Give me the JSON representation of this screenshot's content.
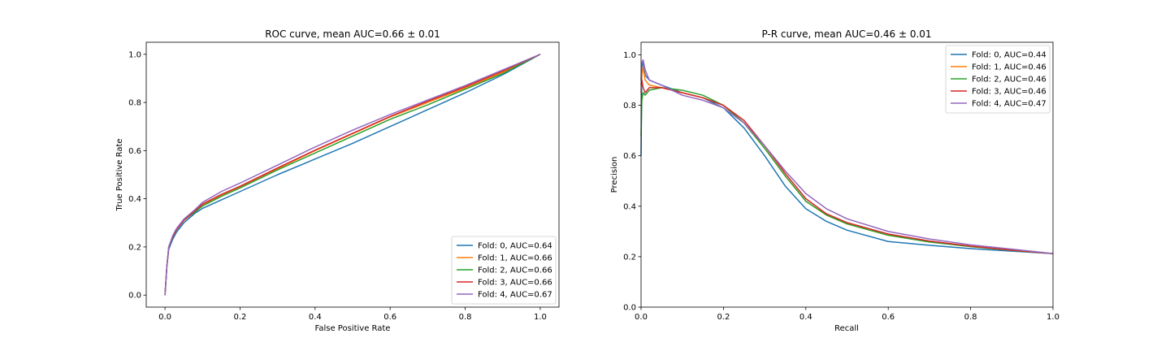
{
  "chart_data": [
    {
      "type": "line",
      "title": "ROC curve, mean AUC=0.66 ± 0.01",
      "xlabel": "False Positive Rate",
      "ylabel": "True Positive Rate",
      "xlim": [
        -0.05,
        1.05
      ],
      "ylim": [
        -0.05,
        1.05
      ],
      "xticks": [
        "0.0",
        "0.2",
        "0.4",
        "0.6",
        "0.8",
        "1.0"
      ],
      "yticks": [
        "0.0",
        "0.2",
        "0.4",
        "0.6",
        "0.8",
        "1.0"
      ],
      "grid": false,
      "legend_position": "lower-right",
      "series": [
        {
          "name": "Fold: 0, AUC=0.64",
          "color": "#1f77b4",
          "x": [
            0,
            0.005,
            0.01,
            0.02,
            0.03,
            0.05,
            0.08,
            0.1,
            0.15,
            0.2,
            0.3,
            0.4,
            0.5,
            0.6,
            0.7,
            0.8,
            0.9,
            1.0
          ],
          "y": [
            0,
            0.12,
            0.19,
            0.23,
            0.26,
            0.3,
            0.34,
            0.36,
            0.395,
            0.43,
            0.5,
            0.565,
            0.63,
            0.7,
            0.77,
            0.84,
            0.915,
            1.0
          ]
        },
        {
          "name": "Fold: 1, AUC=0.66",
          "color": "#ff7f0e",
          "x": [
            0,
            0.005,
            0.01,
            0.02,
            0.03,
            0.05,
            0.08,
            0.1,
            0.15,
            0.2,
            0.3,
            0.4,
            0.5,
            0.6,
            0.7,
            0.8,
            0.9,
            1.0
          ],
          "y": [
            0,
            0.12,
            0.2,
            0.24,
            0.27,
            0.31,
            0.35,
            0.375,
            0.415,
            0.45,
            0.525,
            0.6,
            0.67,
            0.74,
            0.8,
            0.86,
            0.925,
            1.0
          ]
        },
        {
          "name": "Fold: 2, AUC=0.66",
          "color": "#2ca02c",
          "x": [
            0,
            0.005,
            0.01,
            0.02,
            0.03,
            0.05,
            0.08,
            0.1,
            0.15,
            0.2,
            0.3,
            0.4,
            0.5,
            0.6,
            0.7,
            0.8,
            0.9,
            1.0
          ],
          "y": [
            0,
            0.12,
            0.2,
            0.24,
            0.27,
            0.31,
            0.345,
            0.37,
            0.41,
            0.445,
            0.52,
            0.59,
            0.66,
            0.73,
            0.79,
            0.855,
            0.92,
            1.0
          ]
        },
        {
          "name": "Fold: 3, AUC=0.66",
          "color": "#d62728",
          "x": [
            0,
            0.005,
            0.01,
            0.02,
            0.03,
            0.05,
            0.08,
            0.1,
            0.15,
            0.2,
            0.3,
            0.4,
            0.5,
            0.6,
            0.7,
            0.8,
            0.9,
            1.0
          ],
          "y": [
            0,
            0.12,
            0.2,
            0.24,
            0.27,
            0.31,
            0.35,
            0.378,
            0.418,
            0.452,
            0.528,
            0.602,
            0.672,
            0.742,
            0.805,
            0.865,
            0.93,
            1.0
          ]
        },
        {
          "name": "Fold: 4, AUC=0.67",
          "color": "#9467bd",
          "x": [
            0,
            0.005,
            0.01,
            0.02,
            0.03,
            0.05,
            0.08,
            0.1,
            0.15,
            0.2,
            0.3,
            0.4,
            0.5,
            0.6,
            0.7,
            0.8,
            0.9,
            1.0
          ],
          "y": [
            0,
            0.12,
            0.2,
            0.245,
            0.275,
            0.315,
            0.355,
            0.385,
            0.43,
            0.465,
            0.54,
            0.615,
            0.685,
            0.75,
            0.81,
            0.87,
            0.935,
            1.0
          ]
        }
      ]
    },
    {
      "type": "line",
      "title": "P-R curve, mean AUC=0.46 ± 0.01",
      "xlabel": "Recall",
      "ylabel": "Precision",
      "xlim": [
        0,
        1
      ],
      "ylim": [
        0,
        1.05
      ],
      "xticks": [
        "0.0",
        "0.2",
        "0.4",
        "0.6",
        "0.8",
        "1.0"
      ],
      "yticks": [
        "0.0",
        "0.2",
        "0.4",
        "0.6",
        "0.8",
        "1.0"
      ],
      "grid": false,
      "legend_position": "upper-right",
      "series": [
        {
          "name": "Fold: 0, AUC=0.44",
          "color": "#1f77b4",
          "x": [
            0,
            0.002,
            0.005,
            0.01,
            0.02,
            0.05,
            0.1,
            0.15,
            0.2,
            0.25,
            0.3,
            0.35,
            0.4,
            0.45,
            0.5,
            0.6,
            0.7,
            0.8,
            0.9,
            1.0
          ],
          "y": [
            0.6,
            0.95,
            0.97,
            0.92,
            0.9,
            0.88,
            0.85,
            0.83,
            0.79,
            0.71,
            0.6,
            0.48,
            0.39,
            0.34,
            0.305,
            0.26,
            0.245,
            0.232,
            0.222,
            0.212
          ]
        },
        {
          "name": "Fold: 1, AUC=0.46",
          "color": "#ff7f0e",
          "x": [
            0,
            0.002,
            0.005,
            0.01,
            0.02,
            0.05,
            0.1,
            0.15,
            0.2,
            0.25,
            0.3,
            0.35,
            0.4,
            0.45,
            0.5,
            0.6,
            0.7,
            0.8,
            0.9,
            1.0
          ],
          "y": [
            0.85,
            0.92,
            0.95,
            0.9,
            0.88,
            0.87,
            0.85,
            0.83,
            0.8,
            0.73,
            0.63,
            0.52,
            0.42,
            0.365,
            0.33,
            0.285,
            0.26,
            0.24,
            0.225,
            0.212
          ]
        },
        {
          "name": "Fold: 2, AUC=0.46",
          "color": "#2ca02c",
          "x": [
            0,
            0.002,
            0.005,
            0.01,
            0.02,
            0.05,
            0.1,
            0.15,
            0.2,
            0.25,
            0.3,
            0.35,
            0.4,
            0.45,
            0.5,
            0.6,
            0.7,
            0.8,
            0.9,
            1.0
          ],
          "y": [
            0.68,
            0.82,
            0.85,
            0.84,
            0.86,
            0.87,
            0.86,
            0.84,
            0.8,
            0.73,
            0.63,
            0.52,
            0.42,
            0.365,
            0.33,
            0.285,
            0.258,
            0.24,
            0.225,
            0.212
          ]
        },
        {
          "name": "Fold: 3, AUC=0.46",
          "color": "#d62728",
          "x": [
            0,
            0.002,
            0.005,
            0.01,
            0.02,
            0.05,
            0.1,
            0.15,
            0.2,
            0.25,
            0.3,
            0.35,
            0.4,
            0.45,
            0.5,
            0.6,
            0.7,
            0.8,
            0.9,
            1.0
          ],
          "y": [
            0.88,
            0.9,
            0.87,
            0.85,
            0.87,
            0.87,
            0.85,
            0.83,
            0.8,
            0.74,
            0.64,
            0.53,
            0.43,
            0.37,
            0.335,
            0.29,
            0.262,
            0.242,
            0.226,
            0.212
          ]
        },
        {
          "name": "Fold: 4, AUC=0.47",
          "color": "#9467bd",
          "x": [
            0,
            0.002,
            0.005,
            0.01,
            0.02,
            0.05,
            0.1,
            0.15,
            0.2,
            0.25,
            0.3,
            0.35,
            0.4,
            0.45,
            0.5,
            0.6,
            0.7,
            0.8,
            0.9,
            1.0
          ],
          "y": [
            0.9,
            0.97,
            0.98,
            0.94,
            0.9,
            0.88,
            0.84,
            0.82,
            0.79,
            0.73,
            0.64,
            0.54,
            0.45,
            0.39,
            0.35,
            0.3,
            0.27,
            0.247,
            0.23,
            0.212
          ]
        }
      ]
    }
  ]
}
